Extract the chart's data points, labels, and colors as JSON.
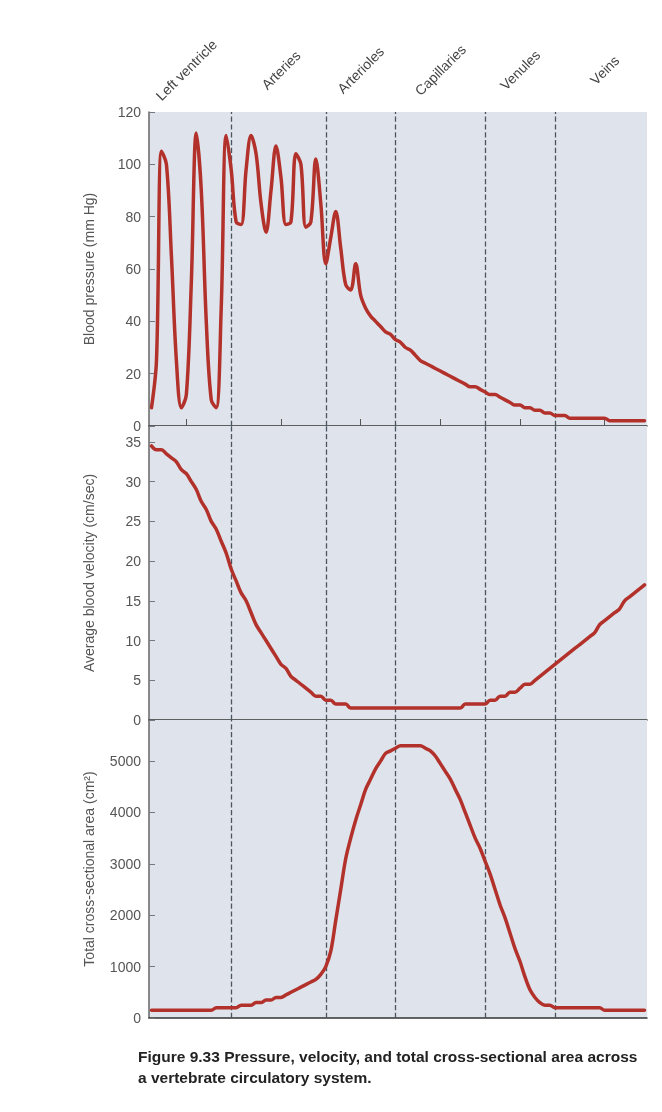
{
  "chart_data": [
    {
      "type": "line",
      "ylabel": "Blood pressure (mm Hg)",
      "ylim": [
        0,
        120
      ],
      "yticks": [
        0,
        20,
        40,
        60,
        80,
        100,
        120
      ],
      "categories": [
        null,
        null,
        null,
        null,
        null,
        null,
        null,
        "Left ventricle",
        null,
        null,
        null,
        null,
        null,
        null,
        null,
        null,
        null,
        null,
        null,
        null,
        null,
        null,
        null,
        null,
        null,
        null,
        "Arteries",
        null,
        null,
        null,
        null,
        null,
        null,
        null,
        null,
        null,
        null,
        null,
        null,
        null,
        null,
        null,
        "Arterioles",
        null,
        null,
        null,
        null,
        null,
        null,
        null,
        null,
        null,
        null,
        null,
        null,
        null,
        null,
        null,
        "Capillaries",
        null,
        null,
        null,
        null,
        null,
        null,
        null,
        null,
        null,
        null,
        null,
        null,
        null,
        null,
        null,
        "Venules",
        null,
        null,
        null,
        null,
        null,
        null,
        null,
        null,
        null,
        null,
        null,
        null,
        null,
        null,
        null,
        null,
        "Veins",
        null,
        null,
        null,
        null,
        null,
        null,
        null,
        null
      ],
      "series": [
        {
          "color": "#b3312b",
          "values": [
            7,
            25,
            105,
            100,
            65,
            25,
            7,
            12,
            55,
            112,
            90,
            40,
            10,
            7,
            45,
            111,
            98,
            78,
            77,
            98,
            111,
            104,
            85,
            74,
            90,
            107,
            95,
            77,
            78,
            104,
            100,
            76,
            78,
            102,
            85,
            62,
            72,
            82,
            68,
            54,
            52,
            62,
            50,
            45,
            42,
            40,
            38,
            36,
            35,
            33,
            32,
            30,
            29,
            27,
            25,
            24,
            23,
            22,
            21,
            20,
            19,
            18,
            17,
            16,
            15,
            15,
            14,
            13,
            12,
            12,
            11,
            10,
            9,
            8,
            8,
            7,
            7,
            6,
            6,
            5,
            5,
            4,
            4,
            4,
            3,
            3,
            3,
            3,
            3,
            3,
            3,
            3,
            2,
            2,
            2,
            2,
            2,
            2,
            2,
            2
          ]
        }
      ],
      "marker": "none",
      "line_style": "solid"
    },
    {
      "type": "line",
      "ylabel": "Average blood velocity (cm/sec)",
      "ylim": [
        0,
        37
      ],
      "yticks": [
        0,
        5,
        10,
        15,
        20,
        25,
        30,
        35
      ],
      "categories": [
        null,
        null,
        null,
        null,
        null,
        null,
        null,
        null,
        null,
        null,
        null,
        null,
        null,
        null,
        null,
        null,
        null,
        null,
        null,
        null,
        null,
        null,
        null,
        null,
        null,
        null,
        null,
        null,
        null,
        null,
        null,
        null,
        null,
        null,
        null,
        null,
        null,
        null,
        null,
        null,
        null,
        null,
        null,
        null,
        null,
        null,
        null,
        null,
        null,
        null,
        null,
        null,
        null,
        null,
        null,
        null,
        null,
        null,
        null,
        null,
        null,
        null,
        null,
        null,
        null,
        null,
        null,
        null,
        null,
        null,
        null,
        null,
        null,
        null,
        null,
        null,
        null,
        null,
        null,
        null,
        null,
        null,
        null,
        null,
        null,
        null,
        null,
        null,
        null,
        null,
        null,
        null,
        null,
        null,
        null,
        null,
        null,
        null,
        null,
        null
      ],
      "series": [
        {
          "color": "#b3312b",
          "values": [
            34.5,
            34,
            34,
            33.5,
            33,
            32.5,
            31.5,
            31,
            30,
            29,
            27.5,
            26.5,
            25,
            24,
            22.5,
            21,
            19,
            17.5,
            16,
            15,
            13.5,
            12,
            11,
            10,
            9,
            8,
            7,
            6.5,
            5.5,
            5,
            4.5,
            4,
            3.5,
            3,
            3,
            2.5,
            2.5,
            2,
            2,
            2,
            1.5,
            1.5,
            1.5,
            1.5,
            1.5,
            1.5,
            1.5,
            1.5,
            1.5,
            1.5,
            1.5,
            1.5,
            1.5,
            1.5,
            1.5,
            1.5,
            1.5,
            1.5,
            1.5,
            1.5,
            1.5,
            1.5,
            1.5,
            2,
            2,
            2,
            2,
            2,
            2.5,
            2.5,
            3,
            3,
            3.5,
            3.5,
            4,
            4.5,
            4.5,
            5,
            5.5,
            6,
            6.5,
            7,
            7.5,
            8,
            8.5,
            9,
            9.5,
            10,
            10.5,
            11,
            12,
            12.5,
            13,
            13.5,
            14,
            15,
            15.5,
            16,
            16.5,
            17
          ]
        }
      ],
      "tick_labels": "y",
      "marker": "none",
      "line_style": "solid"
    },
    {
      "type": "line",
      "ylabel": "Total cross-sectional area (cm²)",
      "ylim": [
        0,
        5800
      ],
      "yticks": [
        0,
        1000,
        2000,
        3000,
        4000,
        5000
      ],
      "categories": [
        null,
        null,
        null,
        null,
        null,
        null,
        null,
        null,
        null,
        null,
        null,
        null,
        null,
        null,
        null,
        null,
        null,
        null,
        null,
        null,
        null,
        null,
        null,
        null,
        null,
        null,
        null,
        null,
        null,
        null,
        null,
        null,
        null,
        null,
        null,
        null,
        null,
        null,
        null,
        null,
        null,
        null,
        null,
        null,
        null,
        null,
        null,
        null,
        null,
        null,
        null,
        null,
        null,
        null,
        null,
        null,
        null,
        null,
        null,
        null,
        null,
        null,
        null,
        null,
        null,
        null,
        null,
        null,
        null,
        null,
        null,
        null,
        null,
        null,
        null,
        null,
        null,
        null,
        null,
        null,
        null,
        null,
        null,
        null,
        null,
        null,
        null,
        null,
        null,
        null,
        null,
        null,
        null,
        null,
        null,
        null,
        null,
        null,
        null,
        null
      ],
      "series": [
        {
          "color": "#b3312b",
          "values": [
            150,
            150,
            150,
            150,
            150,
            150,
            150,
            150,
            150,
            150,
            150,
            150,
            150,
            200,
            200,
            200,
            200,
            200,
            250,
            250,
            250,
            300,
            300,
            350,
            350,
            400,
            400,
            450,
            500,
            550,
            600,
            650,
            700,
            750,
            850,
            1000,
            1300,
            1900,
            2500,
            3100,
            3500,
            3850,
            4150,
            4450,
            4650,
            4850,
            5000,
            5150,
            5200,
            5250,
            5300,
            5300,
            5300,
            5300,
            5300,
            5250,
            5200,
            5100,
            4950,
            4800,
            4650,
            4450,
            4250,
            4000,
            3750,
            3500,
            3300,
            3050,
            2800,
            2500,
            2200,
            1950,
            1650,
            1350,
            1100,
            800,
            550,
            400,
            300,
            250,
            250,
            200,
            200,
            200,
            200,
            200,
            200,
            200,
            200,
            200,
            200,
            150,
            150,
            150,
            150,
            150,
            150,
            150,
            150,
            150
          ]
        }
      ],
      "annotations": [
        "Figure 9.33 Pressure, velocity, and total cross-sectional area across a vertebrate circulatory system."
      ],
      "tick_labels": "y",
      "marker": "none",
      "line_style": "solid"
    }
  ]
}
